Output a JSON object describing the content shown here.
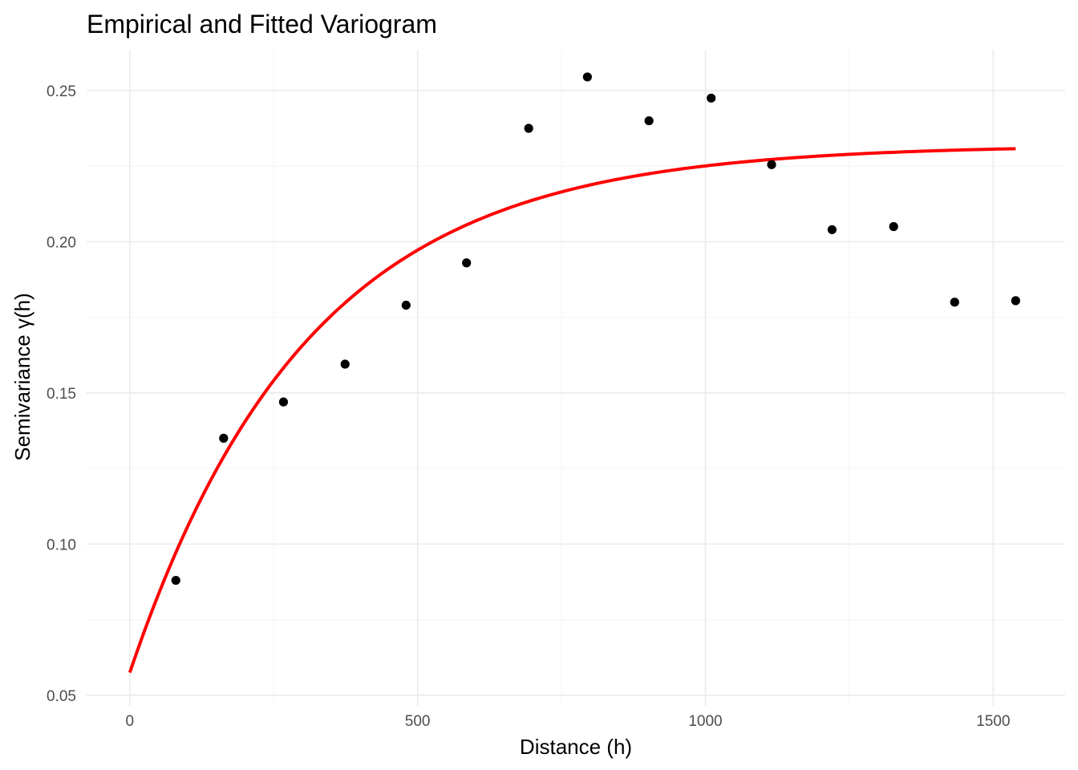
{
  "chart_data": {
    "type": "scatter",
    "title": "Empirical and Fitted Variogram",
    "xlabel": "Distance (h)",
    "ylabel": "Semivariance γ(h)",
    "xlim": [
      -75,
      1625
    ],
    "ylim": [
      0.0465,
      0.2635
    ],
    "x_ticks": [
      0,
      500,
      1000,
      1500
    ],
    "x_tick_labels": [
      "0",
      "500",
      "1000",
      "1500"
    ],
    "y_ticks": [
      0.05,
      0.1,
      0.15,
      0.2,
      0.25
    ],
    "y_tick_labels": [
      "0.05",
      "0.10",
      "0.15",
      "0.20",
      "0.25"
    ],
    "grid": true,
    "legend": "none",
    "series": [
      {
        "type": "scatter",
        "color": "#000000",
        "points": [
          {
            "x": 80,
            "y": 0.088
          },
          {
            "x": 163,
            "y": 0.135
          },
          {
            "x": 267,
            "y": 0.147
          },
          {
            "x": 374,
            "y": 0.1595
          },
          {
            "x": 480,
            "y": 0.179
          },
          {
            "x": 585,
            "y": 0.193
          },
          {
            "x": 693,
            "y": 0.2375
          },
          {
            "x": 795,
            "y": 0.2545
          },
          {
            "x": 902,
            "y": 0.24
          },
          {
            "x": 1010,
            "y": 0.2475
          },
          {
            "x": 1115,
            "y": 0.2255
          },
          {
            "x": 1220,
            "y": 0.204
          },
          {
            "x": 1327,
            "y": 0.205
          },
          {
            "x": 1433,
            "y": 0.18
          },
          {
            "x": 1539,
            "y": 0.1805
          }
        ]
      },
      {
        "type": "line",
        "color": "#ff0000",
        "model": "exponential",
        "nugget": 0.0575,
        "psill": 0.1745,
        "range": 310,
        "x_max": 1539
      }
    ]
  }
}
